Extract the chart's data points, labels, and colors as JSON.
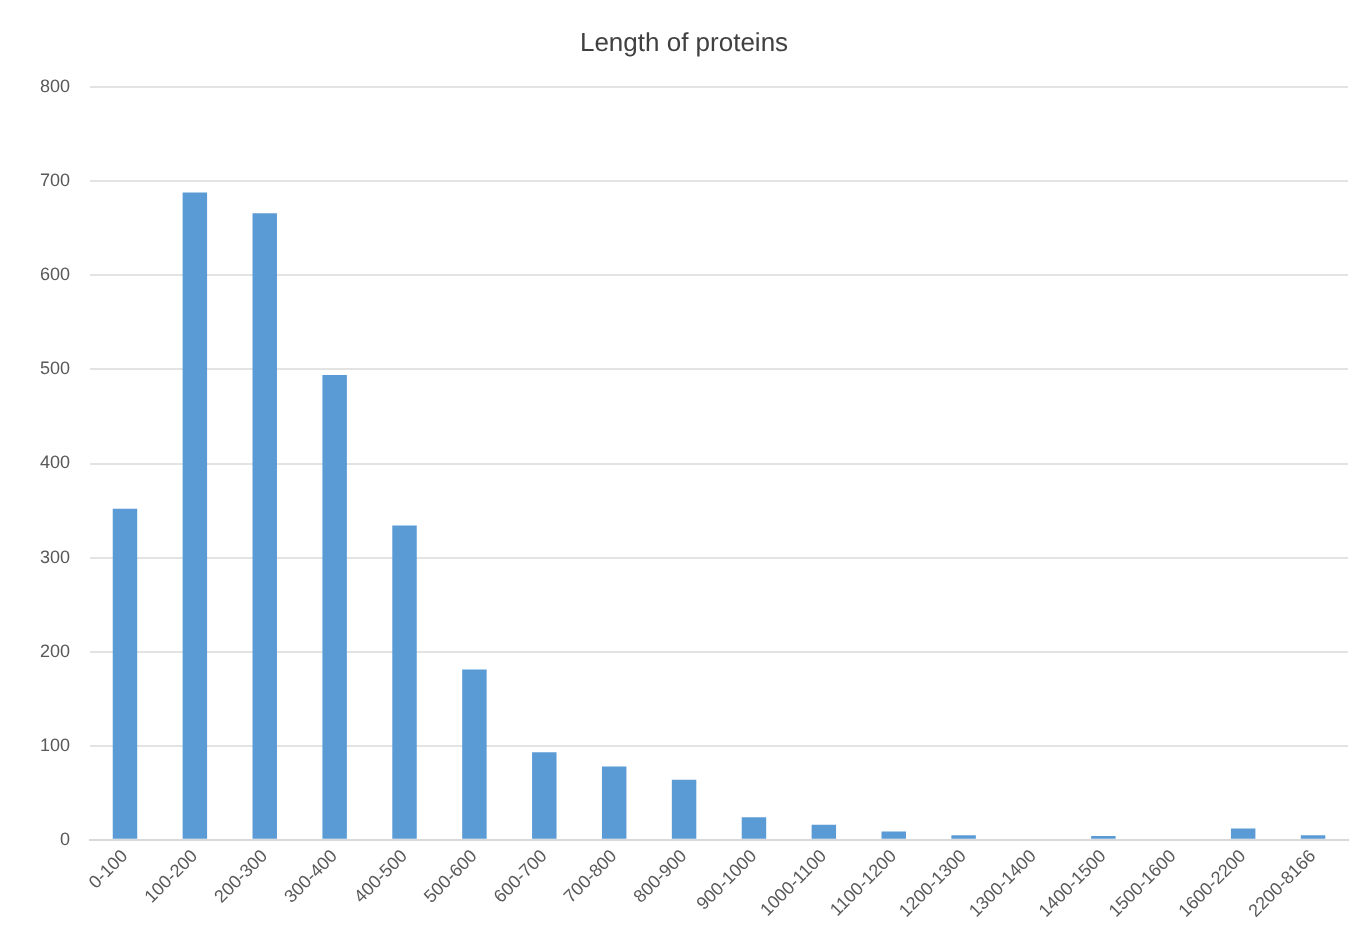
{
  "chart_data": {
    "type": "bar",
    "title": "Length of proteins",
    "categories": [
      "0-100",
      "100-200",
      "200-300",
      "300-400",
      "400-500",
      "500-600",
      "600-700",
      "700-800",
      "800-900",
      "900-1000",
      "1000-1100",
      "1100-1200",
      "1200-1300",
      "1300-1400",
      "1400-1500",
      "1500-1600",
      "1600-2200",
      "2200-8166"
    ],
    "values": [
      352,
      688,
      666,
      494,
      334,
      181,
      93,
      78,
      64,
      24,
      16,
      9,
      5,
      0,
      4,
      0,
      12,
      5
    ],
    "color": "#5b9bd5",
    "ylim": [
      0,
      800
    ],
    "yticks": [
      0,
      100,
      200,
      300,
      400,
      500,
      600,
      700,
      800
    ],
    "grid": "y",
    "legend": false
  }
}
